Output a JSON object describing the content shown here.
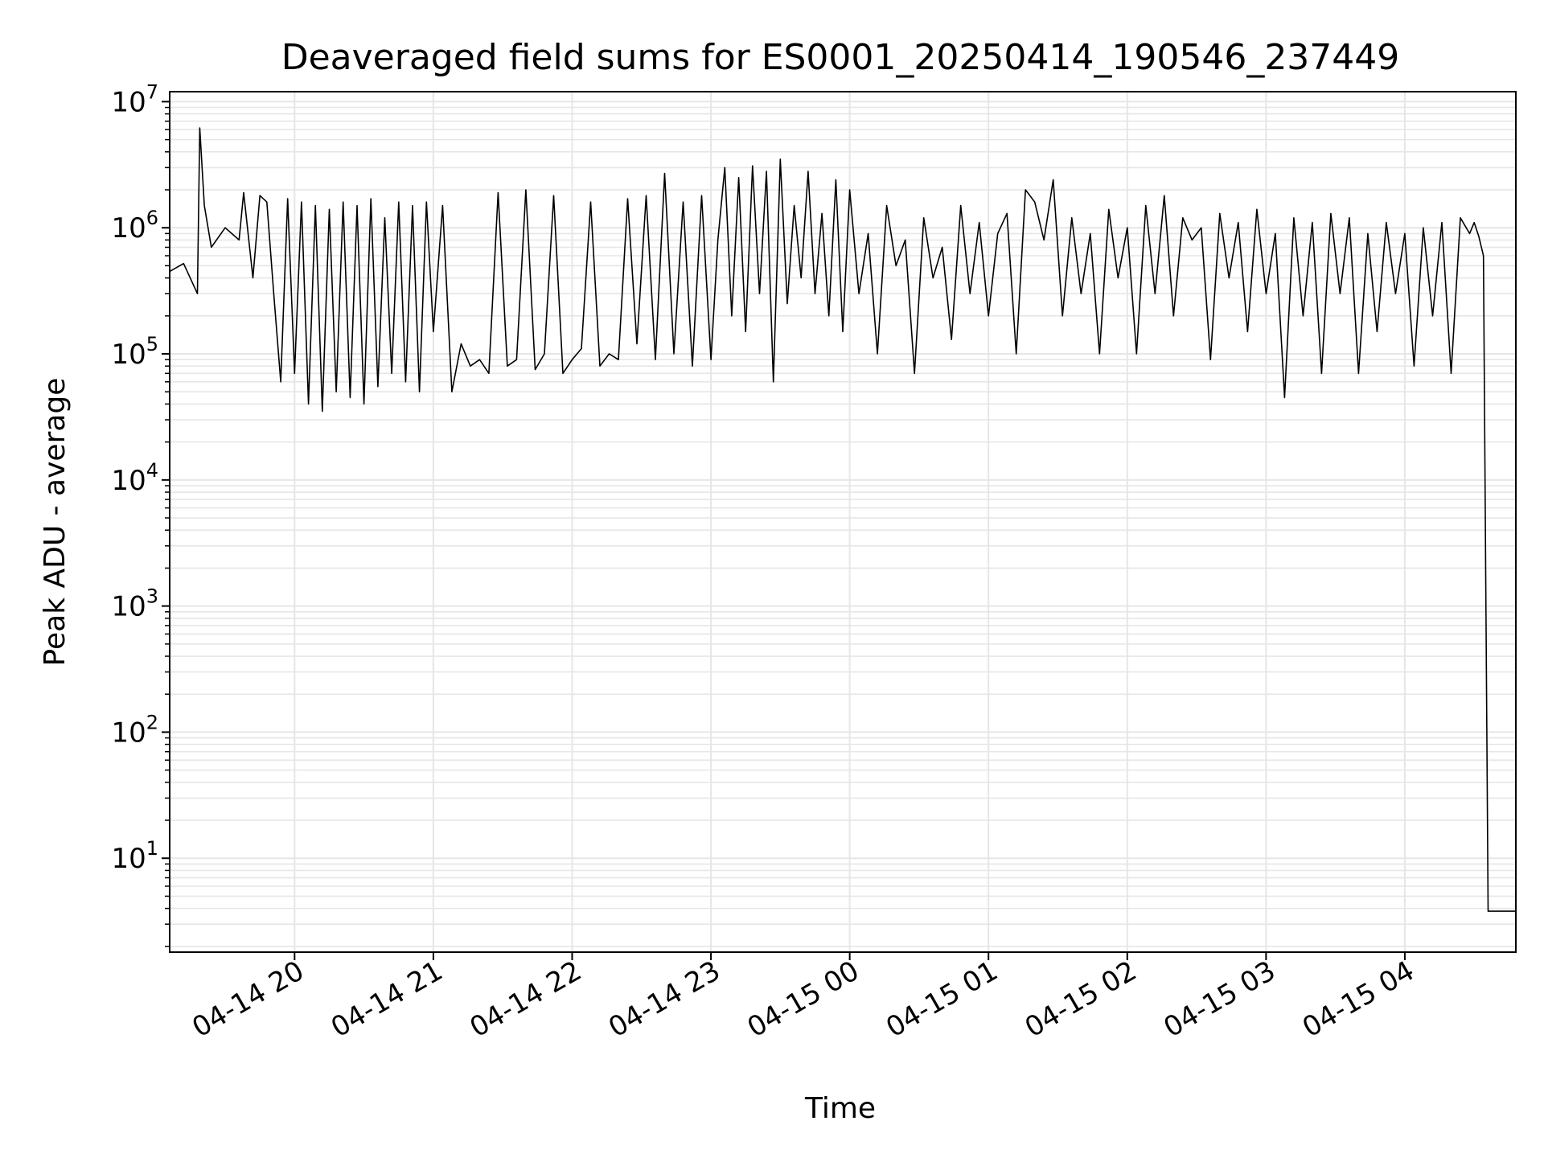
{
  "chart_data": {
    "type": "line",
    "title": "Deaveraged field sums for ES0001_20250414_190546_237449",
    "xlabel": "Time",
    "ylabel": "Peak ADU - average",
    "x_scale": "time",
    "y_scale": "log",
    "xlim": [
      "2025-04-14 19:06",
      "2025-04-15 04:48"
    ],
    "ylim": [
      1.8,
      12000000
    ],
    "grid": true,
    "line_color": "#000000",
    "grid_color": "#e6e6e6",
    "x_ticks": [
      {
        "value": "2025-04-14 20:00",
        "label": "04-14 20"
      },
      {
        "value": "2025-04-14 21:00",
        "label": "04-14 21"
      },
      {
        "value": "2025-04-14 22:00",
        "label": "04-14 22"
      },
      {
        "value": "2025-04-14 23:00",
        "label": "04-14 23"
      },
      {
        "value": "2025-04-15 00:00",
        "label": "04-15 00"
      },
      {
        "value": "2025-04-15 01:00",
        "label": "04-15 01"
      },
      {
        "value": "2025-04-15 02:00",
        "label": "04-15 02"
      },
      {
        "value": "2025-04-15 03:00",
        "label": "04-15 03"
      },
      {
        "value": "2025-04-15 04:00",
        "label": "04-15 04"
      }
    ],
    "y_ticks": [
      {
        "value": 10,
        "base": "10",
        "exp": "1"
      },
      {
        "value": 100,
        "base": "10",
        "exp": "2"
      },
      {
        "value": 1000,
        "base": "10",
        "exp": "3"
      },
      {
        "value": 10000,
        "base": "10",
        "exp": "4"
      },
      {
        "value": 100000,
        "base": "10",
        "exp": "5"
      },
      {
        "value": 1000000,
        "base": "10",
        "exp": "6"
      },
      {
        "value": 10000000,
        "base": "10",
        "exp": "7"
      }
    ],
    "series": [
      {
        "x": [
          "2025-04-14 19:06",
          "2025-04-14 19:12",
          "2025-04-14 19:18",
          "2025-04-14 19:19",
          "2025-04-14 19:21",
          "2025-04-14 19:24",
          "2025-04-14 19:30",
          "2025-04-14 19:36",
          "2025-04-14 19:38",
          "2025-04-14 19:42",
          "2025-04-14 19:45",
          "2025-04-14 19:48",
          "2025-04-14 19:51",
          "2025-04-14 19:54",
          "2025-04-14 19:57",
          "2025-04-14 20:00",
          "2025-04-14 20:03",
          "2025-04-14 20:06",
          "2025-04-14 20:09",
          "2025-04-14 20:12",
          "2025-04-14 20:15",
          "2025-04-14 20:18",
          "2025-04-14 20:21",
          "2025-04-14 20:24",
          "2025-04-14 20:27",
          "2025-04-14 20:30",
          "2025-04-14 20:33",
          "2025-04-14 20:36",
          "2025-04-14 20:39",
          "2025-04-14 20:42",
          "2025-04-14 20:45",
          "2025-04-14 20:48",
          "2025-04-14 20:51",
          "2025-04-14 20:54",
          "2025-04-14 20:57",
          "2025-04-14 21:00",
          "2025-04-14 21:04",
          "2025-04-14 21:08",
          "2025-04-14 21:12",
          "2025-04-14 21:16",
          "2025-04-14 21:20",
          "2025-04-14 21:24",
          "2025-04-14 21:28",
          "2025-04-14 21:32",
          "2025-04-14 21:36",
          "2025-04-14 21:40",
          "2025-04-14 21:44",
          "2025-04-14 21:48",
          "2025-04-14 21:52",
          "2025-04-14 21:56",
          "2025-04-14 22:00",
          "2025-04-14 22:04",
          "2025-04-14 22:08",
          "2025-04-14 22:12",
          "2025-04-14 22:16",
          "2025-04-14 22:20",
          "2025-04-14 22:24",
          "2025-04-14 22:28",
          "2025-04-14 22:32",
          "2025-04-14 22:36",
          "2025-04-14 22:40",
          "2025-04-14 22:44",
          "2025-04-14 22:48",
          "2025-04-14 22:52",
          "2025-04-14 22:56",
          "2025-04-14 23:00",
          "2025-04-14 23:03",
          "2025-04-14 23:06",
          "2025-04-14 23:09",
          "2025-04-14 23:12",
          "2025-04-14 23:15",
          "2025-04-14 23:18",
          "2025-04-14 23:21",
          "2025-04-14 23:24",
          "2025-04-14 23:27",
          "2025-04-14 23:30",
          "2025-04-14 23:33",
          "2025-04-14 23:36",
          "2025-04-14 23:39",
          "2025-04-14 23:42",
          "2025-04-14 23:45",
          "2025-04-14 23:48",
          "2025-04-14 23:51",
          "2025-04-14 23:54",
          "2025-04-14 23:57",
          "2025-04-15 00:00",
          "2025-04-15 00:04",
          "2025-04-15 00:08",
          "2025-04-15 00:12",
          "2025-04-15 00:16",
          "2025-04-15 00:20",
          "2025-04-15 00:24",
          "2025-04-15 00:28",
          "2025-04-15 00:32",
          "2025-04-15 00:36",
          "2025-04-15 00:40",
          "2025-04-15 00:44",
          "2025-04-15 00:48",
          "2025-04-15 00:52",
          "2025-04-15 00:56",
          "2025-04-15 01:00",
          "2025-04-15 01:04",
          "2025-04-15 01:08",
          "2025-04-15 01:12",
          "2025-04-15 01:16",
          "2025-04-15 01:20",
          "2025-04-15 01:24",
          "2025-04-15 01:28",
          "2025-04-15 01:32",
          "2025-04-15 01:36",
          "2025-04-15 01:40",
          "2025-04-15 01:44",
          "2025-04-15 01:48",
          "2025-04-15 01:52",
          "2025-04-15 01:56",
          "2025-04-15 02:00",
          "2025-04-15 02:04",
          "2025-04-15 02:08",
          "2025-04-15 02:12",
          "2025-04-15 02:16",
          "2025-04-15 02:20",
          "2025-04-15 02:24",
          "2025-04-15 02:28",
          "2025-04-15 02:32",
          "2025-04-15 02:36",
          "2025-04-15 02:40",
          "2025-04-15 02:44",
          "2025-04-15 02:48",
          "2025-04-15 02:52",
          "2025-04-15 02:56",
          "2025-04-15 03:00",
          "2025-04-15 03:04",
          "2025-04-15 03:08",
          "2025-04-15 03:12",
          "2025-04-15 03:16",
          "2025-04-15 03:20",
          "2025-04-15 03:24",
          "2025-04-15 03:28",
          "2025-04-15 03:32",
          "2025-04-15 03:36",
          "2025-04-15 03:40",
          "2025-04-15 03:44",
          "2025-04-15 03:48",
          "2025-04-15 03:52",
          "2025-04-15 03:56",
          "2025-04-15 04:00",
          "2025-04-15 04:04",
          "2025-04-15 04:08",
          "2025-04-15 04:12",
          "2025-04-15 04:16",
          "2025-04-15 04:20",
          "2025-04-15 04:24",
          "2025-04-15 04:28",
          "2025-04-15 04:30",
          "2025-04-15 04:32",
          "2025-04-15 04:34",
          "2025-04-15 04:36",
          "2025-04-15 04:38",
          "2025-04-15 04:40",
          "2025-04-15 04:42",
          "2025-04-15 04:44",
          "2025-04-15 04:46",
          "2025-04-15 04:48"
        ],
        "values": [
          450000,
          520000,
          300000,
          6200000,
          1500000,
          700000,
          1000000,
          800000,
          1900000,
          400000,
          1800000,
          1600000,
          300000,
          60000,
          1700000,
          70000,
          1600000,
          40000,
          1500000,
          35000,
          1400000,
          50000,
          1600000,
          45000,
          1500000,
          40000,
          1700000,
          55000,
          1200000,
          70000,
          1600000,
          60000,
          1500000,
          50000,
          1600000,
          150000,
          1500000,
          50000,
          120000,
          80000,
          90000,
          70000,
          1900000,
          80000,
          90000,
          2000000,
          75000,
          100000,
          1800000,
          70000,
          90000,
          110000,
          1600000,
          80000,
          100000,
          90000,
          1700000,
          120000,
          1800000,
          90000,
          2700000,
          100000,
          1600000,
          80000,
          1800000,
          90000,
          800000,
          3000000,
          200000,
          2500000,
          150000,
          3100000,
          300000,
          2800000,
          60000,
          3500000,
          250000,
          1500000,
          400000,
          2800000,
          300000,
          1300000,
          200000,
          2400000,
          150000,
          2000000,
          300000,
          900000,
          100000,
          1500000,
          500000,
          800000,
          70000,
          1200000,
          400000,
          700000,
          130000,
          1500000,
          300000,
          1100000,
          200000,
          900000,
          1300000,
          100000,
          2000000,
          1600000,
          800000,
          2400000,
          200000,
          1200000,
          300000,
          900000,
          100000,
          1400000,
          400000,
          1000000,
          100000,
          1500000,
          300000,
          1800000,
          200000,
          1200000,
          800000,
          1000000,
          90000,
          1300000,
          400000,
          1100000,
          150000,
          1400000,
          300000,
          900000,
          45000,
          1200000,
          200000,
          1100000,
          70000,
          1300000,
          300000,
          1200000,
          70000,
          900000,
          150000,
          1100000,
          300000,
          900000,
          80000,
          1000000,
          200000,
          1100000,
          70000,
          1200000,
          900000,
          1100000,
          850000,
          600000,
          3.8,
          3.8,
          3.8,
          3.8,
          3.8,
          3.8,
          3.8
        ]
      }
    ]
  }
}
